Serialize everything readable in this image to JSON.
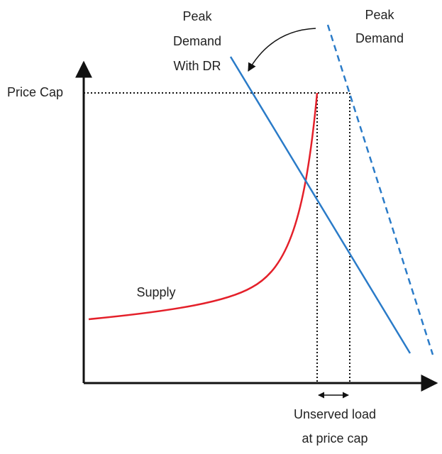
{
  "labels": {
    "price_cap": "Price Cap",
    "peak_demand_dr": [
      "Peak",
      "Demand",
      "With DR"
    ],
    "peak_demand": [
      "Peak",
      "Demand"
    ],
    "supply": "Supply",
    "unserved": [
      "Unserved load",
      "at price cap"
    ]
  }
}
